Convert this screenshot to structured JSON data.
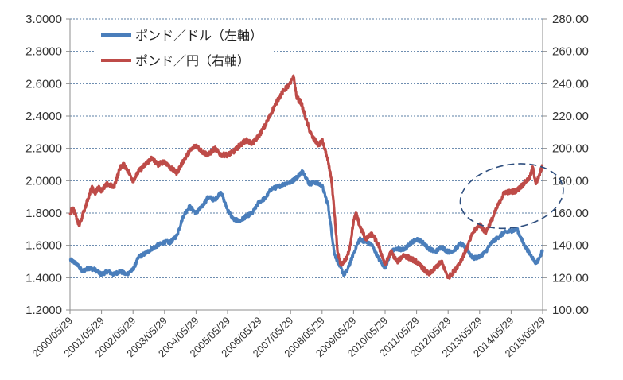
{
  "chart_data": {
    "type": "line",
    "title": "",
    "xlabel": "",
    "ylabel_left": "",
    "ylabel_right": "",
    "x_start": 2000.41,
    "x_end": 2015.41,
    "x_ticks": [
      "2000/05/29",
      "2001/05/29",
      "2002/05/29",
      "2003/05/29",
      "2004/05/29",
      "2005/05/29",
      "2006/05/29",
      "2007/05/29",
      "2008/05/29",
      "2009/05/29",
      "2010/05/29",
      "2011/05/29",
      "2012/05/29",
      "2013/05/29",
      "2014/05/29",
      "2015/05/29"
    ],
    "y_left": {
      "min": 1.2,
      "max": 3.0,
      "ticks": [
        "1.2000",
        "1.4000",
        "1.6000",
        "1.8000",
        "2.0000",
        "2.2000",
        "2.4000",
        "2.6000",
        "2.8000",
        "3.0000"
      ]
    },
    "y_right": {
      "min": 100,
      "max": 280,
      "ticks": [
        "100.00",
        "120.00",
        "140.00",
        "160.00",
        "180.00",
        "200.00",
        "220.00",
        "240.00",
        "260.00",
        "280.00"
      ]
    },
    "grid": true,
    "legend_position": "top-left",
    "series": [
      {
        "name": "ポンド／ドル（左軸）",
        "axis": "left",
        "color": "#4a7ebb",
        "points": [
          [
            2000.41,
            1.51
          ],
          [
            2000.6,
            1.49
          ],
          [
            2000.8,
            1.44
          ],
          [
            2001.0,
            1.46
          ],
          [
            2001.2,
            1.45
          ],
          [
            2001.41,
            1.42
          ],
          [
            2001.6,
            1.44
          ],
          [
            2001.8,
            1.42
          ],
          [
            2002.0,
            1.44
          ],
          [
            2002.2,
            1.42
          ],
          [
            2002.41,
            1.45
          ],
          [
            2002.6,
            1.53
          ],
          [
            2002.8,
            1.55
          ],
          [
            2003.0,
            1.58
          ],
          [
            2003.2,
            1.6
          ],
          [
            2003.41,
            1.62
          ],
          [
            2003.6,
            1.62
          ],
          [
            2003.8,
            1.66
          ],
          [
            2004.0,
            1.78
          ],
          [
            2004.2,
            1.84
          ],
          [
            2004.41,
            1.8
          ],
          [
            2004.6,
            1.84
          ],
          [
            2004.8,
            1.9
          ],
          [
            2005.0,
            1.88
          ],
          [
            2005.2,
            1.93
          ],
          [
            2005.41,
            1.82
          ],
          [
            2005.6,
            1.76
          ],
          [
            2005.8,
            1.75
          ],
          [
            2006.0,
            1.78
          ],
          [
            2006.2,
            1.8
          ],
          [
            2006.41,
            1.87
          ],
          [
            2006.6,
            1.89
          ],
          [
            2006.8,
            1.95
          ],
          [
            2007.0,
            1.96
          ],
          [
            2007.2,
            1.98
          ],
          [
            2007.41,
            1.99
          ],
          [
            2007.6,
            2.02
          ],
          [
            2007.8,
            2.06
          ],
          [
            2008.0,
            1.98
          ],
          [
            2008.2,
            1.99
          ],
          [
            2008.41,
            1.97
          ],
          [
            2008.6,
            1.85
          ],
          [
            2008.8,
            1.55
          ],
          [
            2008.95,
            1.48
          ],
          [
            2009.1,
            1.42
          ],
          [
            2009.2,
            1.44
          ],
          [
            2009.41,
            1.55
          ],
          [
            2009.6,
            1.64
          ],
          [
            2009.8,
            1.62
          ],
          [
            2010.0,
            1.6
          ],
          [
            2010.2,
            1.52
          ],
          [
            2010.41,
            1.46
          ],
          [
            2010.6,
            1.56
          ],
          [
            2010.8,
            1.58
          ],
          [
            2011.0,
            1.57
          ],
          [
            2011.2,
            1.61
          ],
          [
            2011.41,
            1.64
          ],
          [
            2011.6,
            1.62
          ],
          [
            2011.8,
            1.58
          ],
          [
            2012.0,
            1.56
          ],
          [
            2012.2,
            1.59
          ],
          [
            2012.41,
            1.56
          ],
          [
            2012.6,
            1.57
          ],
          [
            2012.8,
            1.61
          ],
          [
            2013.0,
            1.58
          ],
          [
            2013.2,
            1.52
          ],
          [
            2013.41,
            1.53
          ],
          [
            2013.6,
            1.56
          ],
          [
            2013.8,
            1.62
          ],
          [
            2014.0,
            1.65
          ],
          [
            2014.2,
            1.68
          ],
          [
            2014.41,
            1.69
          ],
          [
            2014.6,
            1.7
          ],
          [
            2014.8,
            1.61
          ],
          [
            2015.0,
            1.55
          ],
          [
            2015.2,
            1.49
          ],
          [
            2015.3,
            1.52
          ],
          [
            2015.41,
            1.57
          ]
        ]
      },
      {
        "name": "ポンド／円（右軸）",
        "axis": "right",
        "color": "#be4b48",
        "points": [
          [
            2000.41,
            160
          ],
          [
            2000.5,
            163
          ],
          [
            2000.6,
            158
          ],
          [
            2000.7,
            152
          ],
          [
            2000.8,
            158
          ],
          [
            2000.9,
            164
          ],
          [
            2001.0,
            170
          ],
          [
            2001.1,
            176
          ],
          [
            2001.2,
            172
          ],
          [
            2001.3,
            176
          ],
          [
            2001.41,
            174
          ],
          [
            2001.6,
            178
          ],
          [
            2001.8,
            176
          ],
          [
            2002.0,
            188
          ],
          [
            2002.1,
            190
          ],
          [
            2002.2,
            188
          ],
          [
            2002.41,
            180
          ],
          [
            2002.6,
            186
          ],
          [
            2002.8,
            190
          ],
          [
            2003.0,
            194
          ],
          [
            2003.2,
            190
          ],
          [
            2003.41,
            192
          ],
          [
            2003.6,
            188
          ],
          [
            2003.8,
            185
          ],
          [
            2004.0,
            192
          ],
          [
            2004.2,
            198
          ],
          [
            2004.41,
            202
          ],
          [
            2004.6,
            198
          ],
          [
            2004.8,
            196
          ],
          [
            2005.0,
            200
          ],
          [
            2005.2,
            196
          ],
          [
            2005.41,
            196
          ],
          [
            2005.6,
            198
          ],
          [
            2005.8,
            202
          ],
          [
            2006.0,
            205
          ],
          [
            2006.2,
            203
          ],
          [
            2006.41,
            208
          ],
          [
            2006.6,
            214
          ],
          [
            2006.8,
            222
          ],
          [
            2007.0,
            230
          ],
          [
            2007.2,
            236
          ],
          [
            2007.41,
            240
          ],
          [
            2007.5,
            245
          ],
          [
            2007.6,
            232
          ],
          [
            2007.75,
            228
          ],
          [
            2007.9,
            218
          ],
          [
            2008.0,
            212
          ],
          [
            2008.1,
            207
          ],
          [
            2008.3,
            202
          ],
          [
            2008.41,
            205
          ],
          [
            2008.55,
            196
          ],
          [
            2008.7,
            182
          ],
          [
            2008.8,
            160
          ],
          [
            2008.9,
            136
          ],
          [
            2009.0,
            128
          ],
          [
            2009.1,
            130
          ],
          [
            2009.2,
            132
          ],
          [
            2009.3,
            140
          ],
          [
            2009.41,
            155
          ],
          [
            2009.5,
            160
          ],
          [
            2009.6,
            152
          ],
          [
            2009.8,
            144
          ],
          [
            2010.0,
            147
          ],
          [
            2010.2,
            140
          ],
          [
            2010.41,
            128
          ],
          [
            2010.6,
            136
          ],
          [
            2010.8,
            130
          ],
          [
            2011.0,
            134
          ],
          [
            2011.2,
            132
          ],
          [
            2011.41,
            130
          ],
          [
            2011.6,
            126
          ],
          [
            2011.8,
            122
          ],
          [
            2012.0,
            126
          ],
          [
            2012.2,
            130
          ],
          [
            2012.41,
            120
          ],
          [
            2012.6,
            124
          ],
          [
            2012.8,
            130
          ],
          [
            2013.0,
            138
          ],
          [
            2013.2,
            148
          ],
          [
            2013.41,
            153
          ],
          [
            2013.6,
            148
          ],
          [
            2013.8,
            156
          ],
          [
            2014.0,
            165
          ],
          [
            2014.2,
            173
          ],
          [
            2014.41,
            173
          ],
          [
            2014.6,
            174
          ],
          [
            2014.8,
            178
          ],
          [
            2015.0,
            182
          ],
          [
            2015.1,
            188
          ],
          [
            2015.2,
            178
          ],
          [
            2015.3,
            183
          ],
          [
            2015.41,
            190
          ]
        ]
      }
    ],
    "annotations": [
      {
        "type": "dashed-ellipse",
        "note": "highlight of recent pound/yen rise",
        "x_center": 2014.43,
        "y_center_right": 170.5,
        "x_radius": 1.65,
        "y_radius_right": 19.5
      }
    ]
  }
}
